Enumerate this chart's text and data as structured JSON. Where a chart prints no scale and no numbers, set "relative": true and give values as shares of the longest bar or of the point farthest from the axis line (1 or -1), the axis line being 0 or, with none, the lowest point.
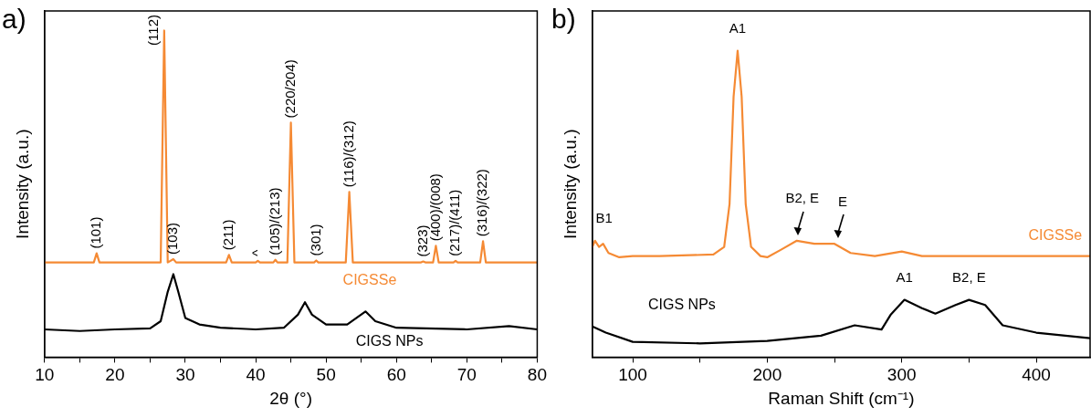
{
  "chart_data": [
    {
      "type": "line",
      "relative": true,
      "xlabel": "2θ (°)",
      "ylabel": "Intensity (a.u.)",
      "xlim": [
        10,
        80
      ],
      "xticks": [
        10,
        {
          "value": 15,
          "label": null
        },
        20,
        {
          "value": 25,
          "label": null
        },
        30,
        {
          "value": 35,
          "label": null
        },
        40,
        {
          "value": 45,
          "label": null
        },
        50,
        {
          "value": 55,
          "label": null
        },
        60,
        {
          "value": 65,
          "label": null
        },
        70,
        {
          "value": 75,
          "label": null
        },
        80
      ],
      "tick_labels": "x",
      "legend": false,
      "marker": "none",
      "line_style": "solid",
      "series": [
        {
          "name": "CIGSSe",
          "color": "#f58a34",
          "x": [
            10,
            17,
            17.4,
            17.8,
            26.5,
            27.0,
            27.5,
            28.3,
            28.7,
            35.8,
            36.2,
            36.6,
            40.0,
            40.3,
            40.6,
            42.5,
            42.8,
            43.1,
            44.5,
            45.0,
            45.5,
            48.3,
            48.6,
            48.9,
            52.8,
            53.3,
            53.8,
            63.5,
            63.8,
            64.1,
            65.2,
            65.6,
            66.0,
            68.1,
            68.4,
            68.7,
            71.9,
            72.3,
            72.7,
            80
          ],
          "values": [
            0.29,
            0.29,
            0.318,
            0.29,
            0.29,
            1,
            0.29,
            0.3,
            0.29,
            0.29,
            0.313,
            0.29,
            0.29,
            0.295,
            0.29,
            0.29,
            0.298,
            0.29,
            0.29,
            0.718,
            0.29,
            0.29,
            0.296,
            0.29,
            0.29,
            0.506,
            0.29,
            0.29,
            0.293,
            0.29,
            0.29,
            0.341,
            0.29,
            0.29,
            0.295,
            0.29,
            0.29,
            0.355,
            0.29,
            0.29
          ]
        },
        {
          "name": "CIGS NPs",
          "color": "#000000",
          "x": [
            10,
            15,
            20,
            25,
            26.5,
            27.5,
            28.3,
            29,
            30,
            32,
            35,
            40,
            44,
            46,
            47,
            48,
            50,
            53,
            55.6,
            57,
            60,
            70,
            76,
            80
          ],
          "values": [
            0.085,
            0.08,
            0.085,
            0.088,
            0.11,
            0.2,
            0.254,
            0.2,
            0.12,
            0.1,
            0.09,
            0.085,
            0.09,
            0.13,
            0.168,
            0.13,
            0.1,
            0.1,
            0.14,
            0.11,
            0.09,
            0.085,
            0.095,
            0.085
          ]
        }
      ],
      "annotations": [
        "a)",
        {
          "text": "(101)",
          "x": 17.4,
          "y": 0.318
        },
        {
          "text": "(112)",
          "x": 27.0,
          "y": 1
        },
        {
          "text": "(103)",
          "x": 28.3,
          "y": 0.3
        },
        {
          "text": "(211)",
          "x": 36.2,
          "y": 0.313
        },
        {
          "text": "^",
          "x": 40.3,
          "y": 0.295
        },
        {
          "text": "(105)/(213)",
          "x": 42.8,
          "y": 0.298
        },
        {
          "text": "(220/204)",
          "x": 45.0,
          "y": 0.718
        },
        {
          "text": "(301)",
          "x": 48.6,
          "y": 0.296
        },
        {
          "text": "(116)/(312)",
          "x": 53.3,
          "y": 0.506
        },
        {
          "text": "(323)",
          "x": 63.8,
          "y": 0.293
        },
        {
          "text": "(400)/(008)",
          "x": 65.6,
          "y": 0.341
        },
        {
          "text": "(217)/(411)",
          "x": 68.4,
          "y": 0.295
        },
        {
          "text": "(316)/(322)",
          "x": 72.3,
          "y": 0.355
        }
      ]
    },
    {
      "type": "line",
      "relative": true,
      "xlabel": "Raman Shift (cm⁻¹)",
      "ylabel": "Intensity (a.u.)",
      "xlim": [
        70,
        440
      ],
      "xticks": [
        100,
        {
          "value": 150,
          "label": null
        },
        200,
        {
          "value": 250,
          "label": null
        },
        300,
        {
          "value": 350,
          "label": null
        },
        400
      ],
      "tick_labels": "x",
      "legend": false,
      "marker": "none",
      "line_style": "solid",
      "series": [
        {
          "name": "CIGSSe",
          "color": "#f58a34",
          "x": [
            70,
            72,
            75,
            78,
            82,
            90,
            100,
            120,
            160,
            168,
            172,
            175,
            178,
            181,
            184,
            188,
            195,
            200,
            210,
            222,
            235,
            250,
            262,
            280,
            300,
            315,
            440
          ],
          "values": [
            0.36,
            0.38,
            0.36,
            0.37,
            0.34,
            0.326,
            0.33,
            0.33,
            0.335,
            0.36,
            0.5,
            0.85,
            1,
            0.85,
            0.5,
            0.36,
            0.33,
            0.326,
            0.35,
            0.38,
            0.37,
            0.37,
            0.34,
            0.33,
            0.345,
            0.33,
            0.33
          ]
        },
        {
          "name": "CIGS NPs",
          "color": "#000000",
          "x": [
            70,
            80,
            100,
            150,
            200,
            240,
            265,
            285,
            292,
            302,
            315,
            325,
            340,
            350,
            362,
            375,
            400,
            440
          ],
          "values": [
            0.1,
            0.08,
            0.05,
            0.045,
            0.053,
            0.07,
            0.104,
            0.09,
            0.14,
            0.187,
            0.16,
            0.142,
            0.17,
            0.187,
            0.17,
            0.104,
            0.08,
            0.062
          ]
        }
      ],
      "annotations": [
        "b)",
        {
          "text": "B1",
          "x": 72,
          "y": 0.38
        },
        {
          "text": "A1",
          "x": 178,
          "y": 1
        },
        {
          "text": "B2, E",
          "x": 222,
          "y": 0.38
        },
        {
          "text": "E",
          "x": 252,
          "y": 0.37
        },
        {
          "text": "A1",
          "x": 302,
          "y": 0.187
        },
        {
          "text": "B2, E",
          "x": 350,
          "y": 0.187
        }
      ]
    }
  ]
}
